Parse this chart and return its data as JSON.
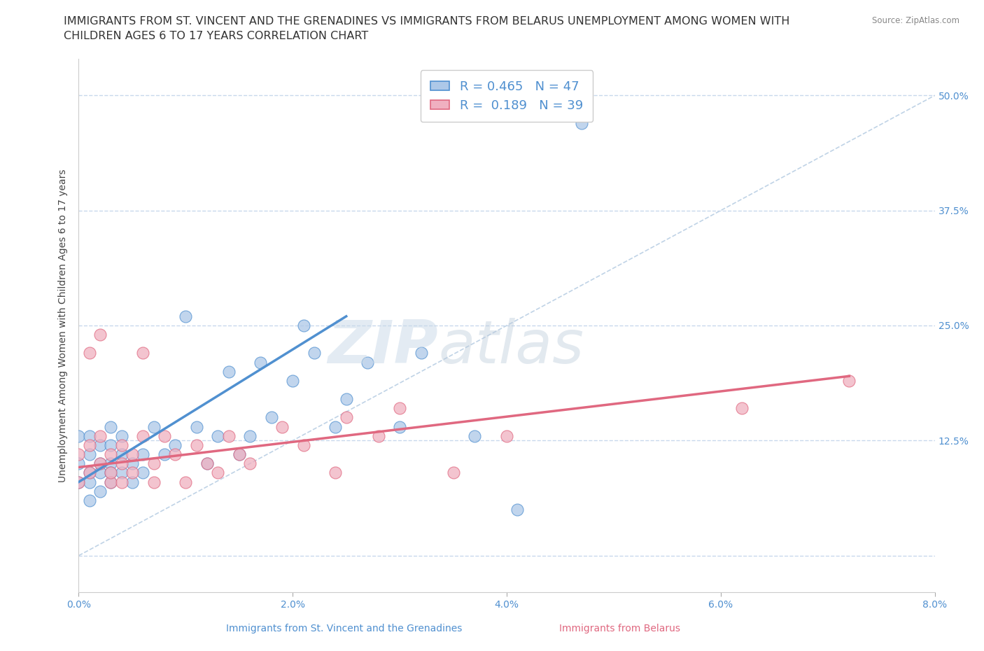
{
  "title_line1": "IMMIGRANTS FROM ST. VINCENT AND THE GRENADINES VS IMMIGRANTS FROM BELARUS UNEMPLOYMENT AMONG WOMEN WITH",
  "title_line2": "CHILDREN AGES 6 TO 17 YEARS CORRELATION CHART",
  "source": "Source: ZipAtlas.com",
  "xlabel_blue": "Immigrants from St. Vincent and the Grenadines",
  "xlabel_pink": "Immigrants from Belarus",
  "ylabel": "Unemployment Among Women with Children Ages 6 to 17 years",
  "xlim": [
    0.0,
    0.08
  ],
  "ylim": [
    -0.04,
    0.54
  ],
  "xticks": [
    0.0,
    0.02,
    0.04,
    0.06,
    0.08
  ],
  "xtick_labels": [
    "0.0%",
    "2.0%",
    "4.0%",
    "6.0%",
    "8.0%"
  ],
  "yticks": [
    0.0,
    0.125,
    0.25,
    0.375,
    0.5
  ],
  "ytick_labels": [
    "",
    "12.5%",
    "25.0%",
    "37.5%",
    "50.0%"
  ],
  "R_blue": 0.465,
  "N_blue": 47,
  "R_pink": 0.189,
  "N_pink": 39,
  "blue_color": "#adc8e8",
  "pink_color": "#f0b0c0",
  "line_blue": "#5090d0",
  "line_pink": "#e06880",
  "diag_color": "#b0c8e0",
  "blue_scatter_x": [
    0.0,
    0.0,
    0.0,
    0.001,
    0.001,
    0.001,
    0.001,
    0.001,
    0.002,
    0.002,
    0.002,
    0.002,
    0.003,
    0.003,
    0.003,
    0.003,
    0.003,
    0.004,
    0.004,
    0.004,
    0.005,
    0.005,
    0.006,
    0.006,
    0.007,
    0.008,
    0.009,
    0.01,
    0.011,
    0.012,
    0.013,
    0.014,
    0.015,
    0.016,
    0.017,
    0.018,
    0.02,
    0.021,
    0.022,
    0.024,
    0.025,
    0.027,
    0.03,
    0.032,
    0.037,
    0.041,
    0.047
  ],
  "blue_scatter_y": [
    0.08,
    0.1,
    0.13,
    0.06,
    0.09,
    0.11,
    0.13,
    0.08,
    0.07,
    0.1,
    0.12,
    0.09,
    0.08,
    0.1,
    0.12,
    0.14,
    0.09,
    0.11,
    0.09,
    0.13,
    0.1,
    0.08,
    0.11,
    0.09,
    0.14,
    0.11,
    0.12,
    0.26,
    0.14,
    0.1,
    0.13,
    0.2,
    0.11,
    0.13,
    0.21,
    0.15,
    0.19,
    0.25,
    0.22,
    0.14,
    0.17,
    0.21,
    0.14,
    0.22,
    0.13,
    0.05,
    0.47
  ],
  "pink_scatter_x": [
    0.0,
    0.0,
    0.001,
    0.001,
    0.001,
    0.002,
    0.002,
    0.002,
    0.003,
    0.003,
    0.003,
    0.004,
    0.004,
    0.004,
    0.005,
    0.005,
    0.006,
    0.006,
    0.007,
    0.007,
    0.008,
    0.009,
    0.01,
    0.011,
    0.012,
    0.013,
    0.014,
    0.015,
    0.016,
    0.019,
    0.021,
    0.024,
    0.025,
    0.028,
    0.03,
    0.035,
    0.04,
    0.062,
    0.072
  ],
  "pink_scatter_y": [
    0.08,
    0.11,
    0.09,
    0.12,
    0.22,
    0.1,
    0.13,
    0.24,
    0.08,
    0.11,
    0.09,
    0.12,
    0.1,
    0.08,
    0.11,
    0.09,
    0.13,
    0.22,
    0.1,
    0.08,
    0.13,
    0.11,
    0.08,
    0.12,
    0.1,
    0.09,
    0.13,
    0.11,
    0.1,
    0.14,
    0.12,
    0.09,
    0.15,
    0.13,
    0.16,
    0.09,
    0.13,
    0.16,
    0.19
  ],
  "blue_line_x": [
    0.0,
    0.025
  ],
  "blue_line_y": [
    0.08,
    0.26
  ],
  "pink_line_x": [
    0.0,
    0.072
  ],
  "pink_line_y": [
    0.096,
    0.195
  ],
  "diag_line_x": [
    0.0,
    0.08
  ],
  "diag_line_y": [
    0.0,
    0.5
  ],
  "grid_color": "#c8d8ec",
  "background_color": "#ffffff",
  "title_fontsize": 11.5,
  "axis_label_fontsize": 10,
  "tick_fontsize": 10
}
